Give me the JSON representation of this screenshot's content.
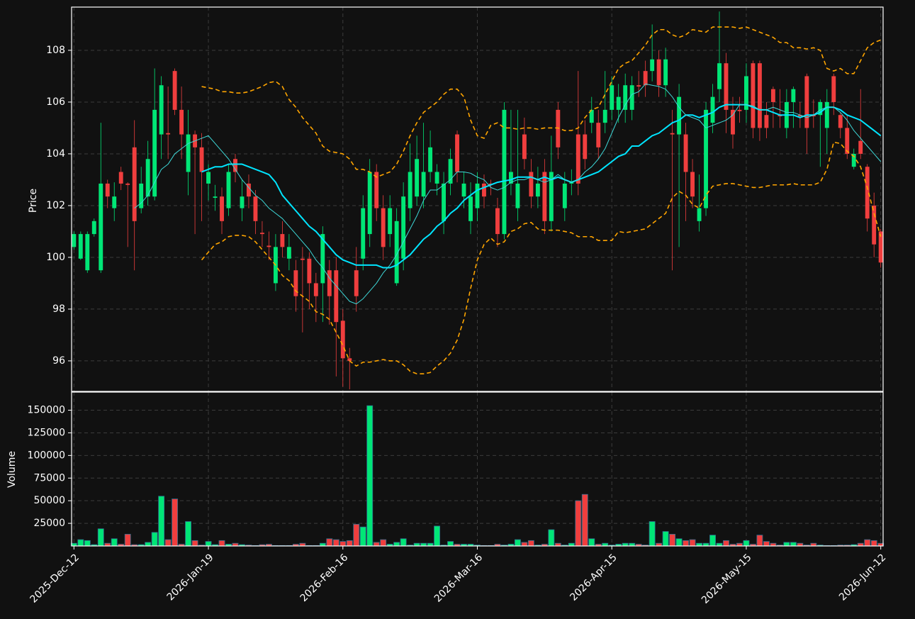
{
  "chart_data": {
    "type": "candlestick",
    "ylabel": "Price",
    "categories": [
      "2025-Dec-12",
      null,
      null,
      null,
      null,
      null,
      null,
      null,
      null,
      null,
      null,
      null,
      null,
      null,
      null,
      null,
      null,
      null,
      null,
      null,
      "2026-Jan-19",
      null,
      null,
      null,
      null,
      null,
      null,
      null,
      null,
      null,
      null,
      null,
      null,
      null,
      null,
      null,
      null,
      null,
      null,
      null,
      "2026-Feb-16",
      null,
      null,
      null,
      null,
      null,
      null,
      null,
      null,
      null,
      null,
      null,
      null,
      null,
      null,
      null,
      null,
      null,
      null,
      null,
      "2026-Mar-16",
      null,
      null,
      null,
      null,
      null,
      null,
      null,
      null,
      null,
      null,
      null,
      null,
      null,
      null,
      null,
      null,
      null,
      null,
      null,
      "2026-Apr-15",
      null,
      null,
      null,
      null,
      null,
      null,
      null,
      null,
      null,
      null,
      null,
      null,
      null,
      null,
      null,
      null,
      null,
      null,
      null,
      "2026-May-15",
      null,
      null,
      null,
      null,
      null,
      null,
      null,
      null,
      null,
      null,
      null,
      null,
      null,
      null,
      null,
      null,
      null,
      null,
      null,
      "2026-Jun-12"
    ],
    "open": [
      100.4,
      99.95,
      99.5,
      100.9,
      99.5,
      102.85,
      101.9,
      103.3,
      102.85,
      104.25,
      101.9,
      102.35,
      102.35,
      104.75,
      104.8,
      107.2,
      105.7,
      103.3,
      104.75,
      104.25,
      102.85,
      102.3,
      102.35,
      101.9,
      103.8,
      101.9,
      102.85,
      102.35,
      100.95,
      100.45,
      99.0,
      100.9,
      99.95,
      99.5,
      99.95,
      99.95,
      99.0,
      99.0,
      99.5,
      99.5,
      97.55,
      96.1,
      99.5,
      99.95,
      100.9,
      103.3,
      101.9,
      100.9,
      99.0,
      99.95,
      101.9,
      102.35,
      102.35,
      103.3,
      102.85,
      101.4,
      102.85,
      104.75,
      102.35,
      101.4,
      101.9,
      102.85,
      102.85,
      101.9,
      100.9,
      102.85,
      101.9,
      104.75,
      103.3,
      102.35,
      103.3,
      101.4,
      105.7,
      101.9,
      102.85,
      104.75,
      104.75,
      105.2,
      105.2,
      105.2,
      105.7,
      105.7,
      105.7,
      105.7,
      106.65,
      107.2,
      107.2,
      107.65,
      106.65,
      104.8,
      104.75,
      104.75,
      103.3,
      101.4,
      101.9,
      105.2,
      106.5,
      107.5,
      105.7,
      105.7,
      105.7,
      107.5,
      107.5,
      105.5,
      106.5,
      105.5,
      105.0,
      106.0,
      105.5,
      107.0,
      105.5,
      105.5,
      105.0,
      107.0,
      105.5,
      105.0,
      103.5,
      104.5,
      103.5,
      102.0,
      101.0
    ],
    "high": [
      101.0,
      101.0,
      101.0,
      101.5,
      105.2,
      103.0,
      102.9,
      103.5,
      102.9,
      105.3,
      103.5,
      104.5,
      107.3,
      107.0,
      106.6,
      107.3,
      106.6,
      105.7,
      104.9,
      104.8,
      103.6,
      102.8,
      102.7,
      103.6,
      104.0,
      103.0,
      103.2,
      102.6,
      101.4,
      101.0,
      100.9,
      101.4,
      100.9,
      99.9,
      100.4,
      100.2,
      99.4,
      101.2,
      99.9,
      100.0,
      98.0,
      96.5,
      100.4,
      102.4,
      103.8,
      103.6,
      102.4,
      102.4,
      101.9,
      102.9,
      104.4,
      104.7,
      105.2,
      104.9,
      103.6,
      103.3,
      104.2,
      104.9,
      103.3,
      102.9,
      103.3,
      103.2,
      103.0,
      102.3,
      106.0,
      105.7,
      105.7,
      105.4,
      103.8,
      103.5,
      103.8,
      104.7,
      106.0,
      103.3,
      103.4,
      107.2,
      105.3,
      106.2,
      105.7,
      107.2,
      107.0,
      106.7,
      107.1,
      107.0,
      107.2,
      107.6,
      109.0,
      108.0,
      108.1,
      105.7,
      106.7,
      105.2,
      103.8,
      103.2,
      106.0,
      106.7,
      109.5,
      107.9,
      106.2,
      106.2,
      107.5,
      107.6,
      107.6,
      106.0,
      106.6,
      106.5,
      106.5,
      106.6,
      106.0,
      107.1,
      106.1,
      106.1,
      106.5,
      107.1,
      105.6,
      105.5,
      104.2,
      106.5,
      103.6,
      102.5,
      101.1
    ],
    "low": [
      100.3,
      99.9,
      99.4,
      100.8,
      99.4,
      101.9,
      101.4,
      102.6,
      100.4,
      99.5,
      101.7,
      102.0,
      102.2,
      103.8,
      103.8,
      105.5,
      103.8,
      102.4,
      100.9,
      101.4,
      102.2,
      101.8,
      100.9,
      101.6,
      102.9,
      101.4,
      101.9,
      100.9,
      100.4,
      99.9,
      98.7,
      100.0,
      99.5,
      97.9,
      97.1,
      98.0,
      97.5,
      97.5,
      97.4,
      95.4,
      95.0,
      94.9,
      97.9,
      99.5,
      100.4,
      101.4,
      99.9,
      100.4,
      98.9,
      99.5,
      101.4,
      102.0,
      101.9,
      102.9,
      102.4,
      100.9,
      102.4,
      102.9,
      101.9,
      100.9,
      101.4,
      101.9,
      102.4,
      100.4,
      100.7,
      102.4,
      101.4,
      103.4,
      101.9,
      101.9,
      100.9,
      101.0,
      103.8,
      101.4,
      102.4,
      102.4,
      103.4,
      104.8,
      103.8,
      104.8,
      105.3,
      105.2,
      105.2,
      105.3,
      106.2,
      106.2,
      106.8,
      106.2,
      106.2,
      99.5,
      100.4,
      101.4,
      101.9,
      101.0,
      101.6,
      104.8,
      106.0,
      104.8,
      104.2,
      105.2,
      105.2,
      104.6,
      104.5,
      104.6,
      105.0,
      105.0,
      104.6,
      105.0,
      105.0,
      104.0,
      105.0,
      103.5,
      104.0,
      105.5,
      104.6,
      103.8,
      103.4,
      103.8,
      101.0,
      100.0,
      99.6
    ],
    "close": [
      100.9,
      100.9,
      100.9,
      101.4,
      102.85,
      102.35,
      102.35,
      102.85,
      102.8,
      101.4,
      102.85,
      103.8,
      105.7,
      106.65,
      104.75,
      105.7,
      104.75,
      104.75,
      104.25,
      103.3,
      103.3,
      102.35,
      101.4,
      103.3,
      103.3,
      102.35,
      102.35,
      101.4,
      100.9,
      100.4,
      100.4,
      100.4,
      100.4,
      98.5,
      99.9,
      99.0,
      98.5,
      100.9,
      98.5,
      97.5,
      96.1,
      96.0,
      98.5,
      101.9,
      103.3,
      101.9,
      100.4,
      101.9,
      101.4,
      102.35,
      103.3,
      103.8,
      103.3,
      104.25,
      103.3,
      102.85,
      103.8,
      103.3,
      102.85,
      102.35,
      102.85,
      102.35,
      102.8,
      100.9,
      105.7,
      103.3,
      102.85,
      103.8,
      102.35,
      102.85,
      101.4,
      103.3,
      104.25,
      102.85,
      102.9,
      102.85,
      103.8,
      105.7,
      104.25,
      105.7,
      106.65,
      106.2,
      106.65,
      106.65,
      106.6,
      106.65,
      107.65,
      106.65,
      107.65,
      104.75,
      106.2,
      103.3,
      102.35,
      101.9,
      105.7,
      106.2,
      107.5,
      105.7,
      104.75,
      105.65,
      107.0,
      105.0,
      105.0,
      105.0,
      106.0,
      105.45,
      106.0,
      106.5,
      105.45,
      105.0,
      105.45,
      106.0,
      106.0,
      106.0,
      105.0,
      104.0,
      104.0,
      104.0,
      101.5,
      100.5,
      99.8
    ],
    "up_color": "#00e676",
    "down_color": "#f03e3e",
    "ylim": [
      94.82,
      109.67
    ],
    "yticks": [
      96,
      98,
      100,
      102,
      104,
      106,
      108
    ],
    "grid": true,
    "series": [
      {
        "color": "#00e5ff",
        "linewidth": 2,
        "values": [
          null,
          null,
          null,
          null,
          null,
          null,
          null,
          null,
          null,
          null,
          null,
          null,
          null,
          null,
          null,
          null,
          null,
          null,
          null,
          103.3,
          103.4,
          103.5,
          103.5,
          103.6,
          103.6,
          103.6,
          103.5,
          103.4,
          103.3,
          103.2,
          102.9,
          102.4,
          102.1,
          101.8,
          101.5,
          101.2,
          101.0,
          100.7,
          100.4,
          100.1,
          99.9,
          99.8,
          99.7,
          99.7,
          99.7,
          99.7,
          99.6,
          99.6,
          99.7,
          99.9,
          100.1,
          100.4,
          100.7,
          100.9,
          101.2,
          101.4,
          101.7,
          101.9,
          102.2,
          102.4,
          102.6,
          102.7,
          102.8,
          102.9,
          102.95,
          103.0,
          103.1,
          103.1,
          103.1,
          103.0,
          103.1,
          103.0,
          103.1,
          103.0,
          102.9,
          103.0,
          103.1,
          103.2,
          103.3,
          103.5,
          103.7,
          103.9,
          104.0,
          104.3,
          104.3,
          104.5,
          104.7,
          104.8,
          105.0,
          105.2,
          105.3,
          105.5,
          105.5,
          105.4,
          105.5,
          105.6,
          105.8,
          105.9,
          105.9,
          105.9,
          105.9,
          105.8,
          105.7,
          105.7,
          105.6,
          105.5,
          105.5,
          105.5,
          105.4,
          105.5,
          105.5,
          105.6,
          105.8,
          105.8,
          105.7,
          105.5,
          105.4,
          105.3,
          105.1,
          104.9,
          104.7
        ]
      },
      {
        "color": "#3ed8d8",
        "linewidth": 1,
        "values": [
          null,
          null,
          null,
          null,
          null,
          null,
          null,
          null,
          null,
          101.9,
          102.1,
          102.4,
          102.9,
          103.4,
          103.6,
          104.0,
          104.2,
          104.4,
          104.5,
          104.6,
          104.7,
          104.4,
          104.1,
          103.8,
          103.4,
          103.0,
          102.7,
          102.4,
          102.2,
          101.9,
          101.7,
          101.5,
          101.2,
          100.9,
          100.6,
          100.3,
          99.9,
          99.6,
          99.2,
          98.9,
          98.6,
          98.3,
          98.2,
          98.4,
          98.7,
          99.0,
          99.4,
          99.7,
          100.1,
          100.6,
          101.1,
          101.6,
          102.2,
          102.6,
          102.6,
          102.8,
          103.0,
          103.3,
          103.3,
          103.25,
          103.1,
          103.0,
          102.7,
          102.6,
          102.7,
          102.9,
          103.0,
          103.0,
          103.1,
          103.0,
          102.9,
          103.0,
          103.2,
          103.0,
          102.9,
          103.0,
          103.3,
          103.5,
          103.8,
          104.2,
          104.8,
          105.4,
          105.9,
          106.3,
          106.4,
          106.7,
          106.65,
          106.6,
          106.5,
          106.2,
          105.8,
          105.5,
          105.4,
          105.3,
          105.0,
          105.1,
          105.2,
          105.3,
          105.5,
          105.9,
          105.9,
          105.85,
          105.7,
          105.7,
          105.8,
          105.7,
          105.6,
          105.6,
          105.5,
          105.4,
          105.5,
          105.7,
          105.8,
          105.8,
          105.6,
          105.3,
          104.9,
          104.6,
          104.3,
          104.0,
          103.7
        ]
      },
      {
        "color": "#ffa500",
        "linestyle": "dashed",
        "linewidth": 1.6,
        "values": [
          null,
          null,
          null,
          null,
          null,
          null,
          null,
          null,
          null,
          null,
          null,
          null,
          null,
          null,
          null,
          null,
          null,
          null,
          null,
          106.6,
          106.55,
          106.5,
          106.4,
          106.4,
          106.35,
          106.35,
          106.4,
          106.5,
          106.6,
          106.75,
          106.8,
          106.6,
          106.1,
          105.8,
          105.4,
          105.1,
          104.8,
          104.3,
          104.1,
          104.05,
          104.0,
          103.8,
          103.4,
          103.4,
          103.3,
          103.1,
          103.2,
          103.3,
          103.6,
          104.1,
          104.7,
          105.2,
          105.6,
          105.8,
          106.0,
          106.3,
          106.5,
          106.5,
          106.2,
          105.3,
          104.7,
          104.6,
          105.1,
          105.2,
          105.0,
          105.0,
          104.95,
          105.0,
          105.0,
          104.95,
          105.0,
          105.0,
          105.0,
          104.9,
          104.9,
          105.0,
          105.4,
          105.7,
          105.8,
          106.3,
          106.8,
          107.3,
          107.5,
          107.6,
          107.9,
          108.2,
          108.6,
          108.8,
          108.8,
          108.6,
          108.5,
          108.6,
          108.8,
          108.75,
          108.7,
          108.9,
          108.9,
          108.9,
          108.9,
          108.85,
          108.9,
          108.8,
          108.7,
          108.6,
          108.5,
          108.3,
          108.3,
          108.1,
          108.1,
          108.05,
          108.1,
          108.0,
          107.3,
          107.2,
          107.3,
          107.1,
          107.1,
          107.6,
          108.1,
          108.3,
          108.4
        ]
      },
      {
        "color": "#ffa500",
        "linestyle": "dashed",
        "linewidth": 1.6,
        "values": [
          null,
          null,
          null,
          null,
          null,
          null,
          null,
          null,
          null,
          null,
          null,
          null,
          null,
          null,
          null,
          null,
          null,
          null,
          null,
          99.9,
          100.2,
          100.5,
          100.6,
          100.8,
          100.85,
          100.85,
          100.8,
          100.6,
          100.3,
          100.0,
          99.7,
          99.3,
          99.1,
          98.7,
          98.5,
          98.3,
          97.9,
          97.8,
          97.6,
          97.1,
          96.6,
          96.0,
          95.8,
          95.95,
          95.95,
          96.0,
          96.05,
          96.0,
          96.0,
          95.85,
          95.6,
          95.5,
          95.5,
          95.55,
          95.8,
          96.0,
          96.3,
          96.8,
          97.6,
          98.8,
          99.9,
          100.5,
          100.75,
          100.5,
          100.6,
          101.0,
          101.1,
          101.3,
          101.35,
          101.1,
          101.05,
          101.05,
          101.05,
          101.0,
          100.95,
          100.8,
          100.8,
          100.8,
          100.65,
          100.65,
          100.65,
          101.0,
          100.95,
          101.0,
          101.05,
          101.1,
          101.3,
          101.5,
          101.7,
          102.3,
          102.55,
          102.4,
          102.05,
          101.9,
          102.4,
          102.75,
          102.8,
          102.85,
          102.85,
          102.8,
          102.75,
          102.7,
          102.7,
          102.75,
          102.8,
          102.8,
          102.8,
          102.85,
          102.8,
          102.8,
          102.8,
          102.9,
          103.4,
          104.45,
          104.4,
          104.1,
          103.9,
          103.5,
          102.7,
          101.7,
          100.8
        ]
      }
    ],
    "volume": {
      "ylabel": "Volume",
      "ylim": [
        0,
        170000
      ],
      "yticks": [
        25000,
        50000,
        75000,
        100000,
        125000,
        150000
      ],
      "values": [
        3000,
        7000,
        6000,
        1500,
        19000,
        3000,
        8000,
        2000,
        13000,
        1500,
        1500,
        4000,
        15000,
        55000,
        7000,
        52000,
        2000,
        27000,
        6000,
        1000,
        5000,
        1500,
        6000,
        2000,
        3000,
        1500,
        1000,
        500,
        1500,
        2000,
        500,
        500,
        500,
        2000,
        3000,
        500,
        500,
        3000,
        8000,
        7000,
        5000,
        6000,
        24000,
        21000,
        155000,
        4000,
        7000,
        2000,
        4000,
        8000,
        1000,
        3000,
        3000,
        3000,
        22000,
        1000,
        5000,
        2000,
        2000,
        2000,
        1000,
        500,
        500,
        2000,
        1000,
        2000,
        7000,
        4000,
        6000,
        1000,
        2000,
        18000,
        3000,
        1000,
        3000,
        50000,
        57000,
        8000,
        2000,
        3000,
        1000,
        2000,
        3000,
        3000,
        2000,
        1000,
        27000,
        3000,
        16000,
        13000,
        8000,
        6000,
        7000,
        3000,
        3000,
        12000,
        3000,
        6000,
        2000,
        3000,
        6000,
        2000,
        12000,
        5000,
        3000,
        1000,
        4000,
        4000,
        3000,
        1000,
        3000,
        1000,
        500,
        500,
        1000,
        1000,
        1500,
        3000,
        7000,
        6000,
        3000
      ]
    }
  }
}
